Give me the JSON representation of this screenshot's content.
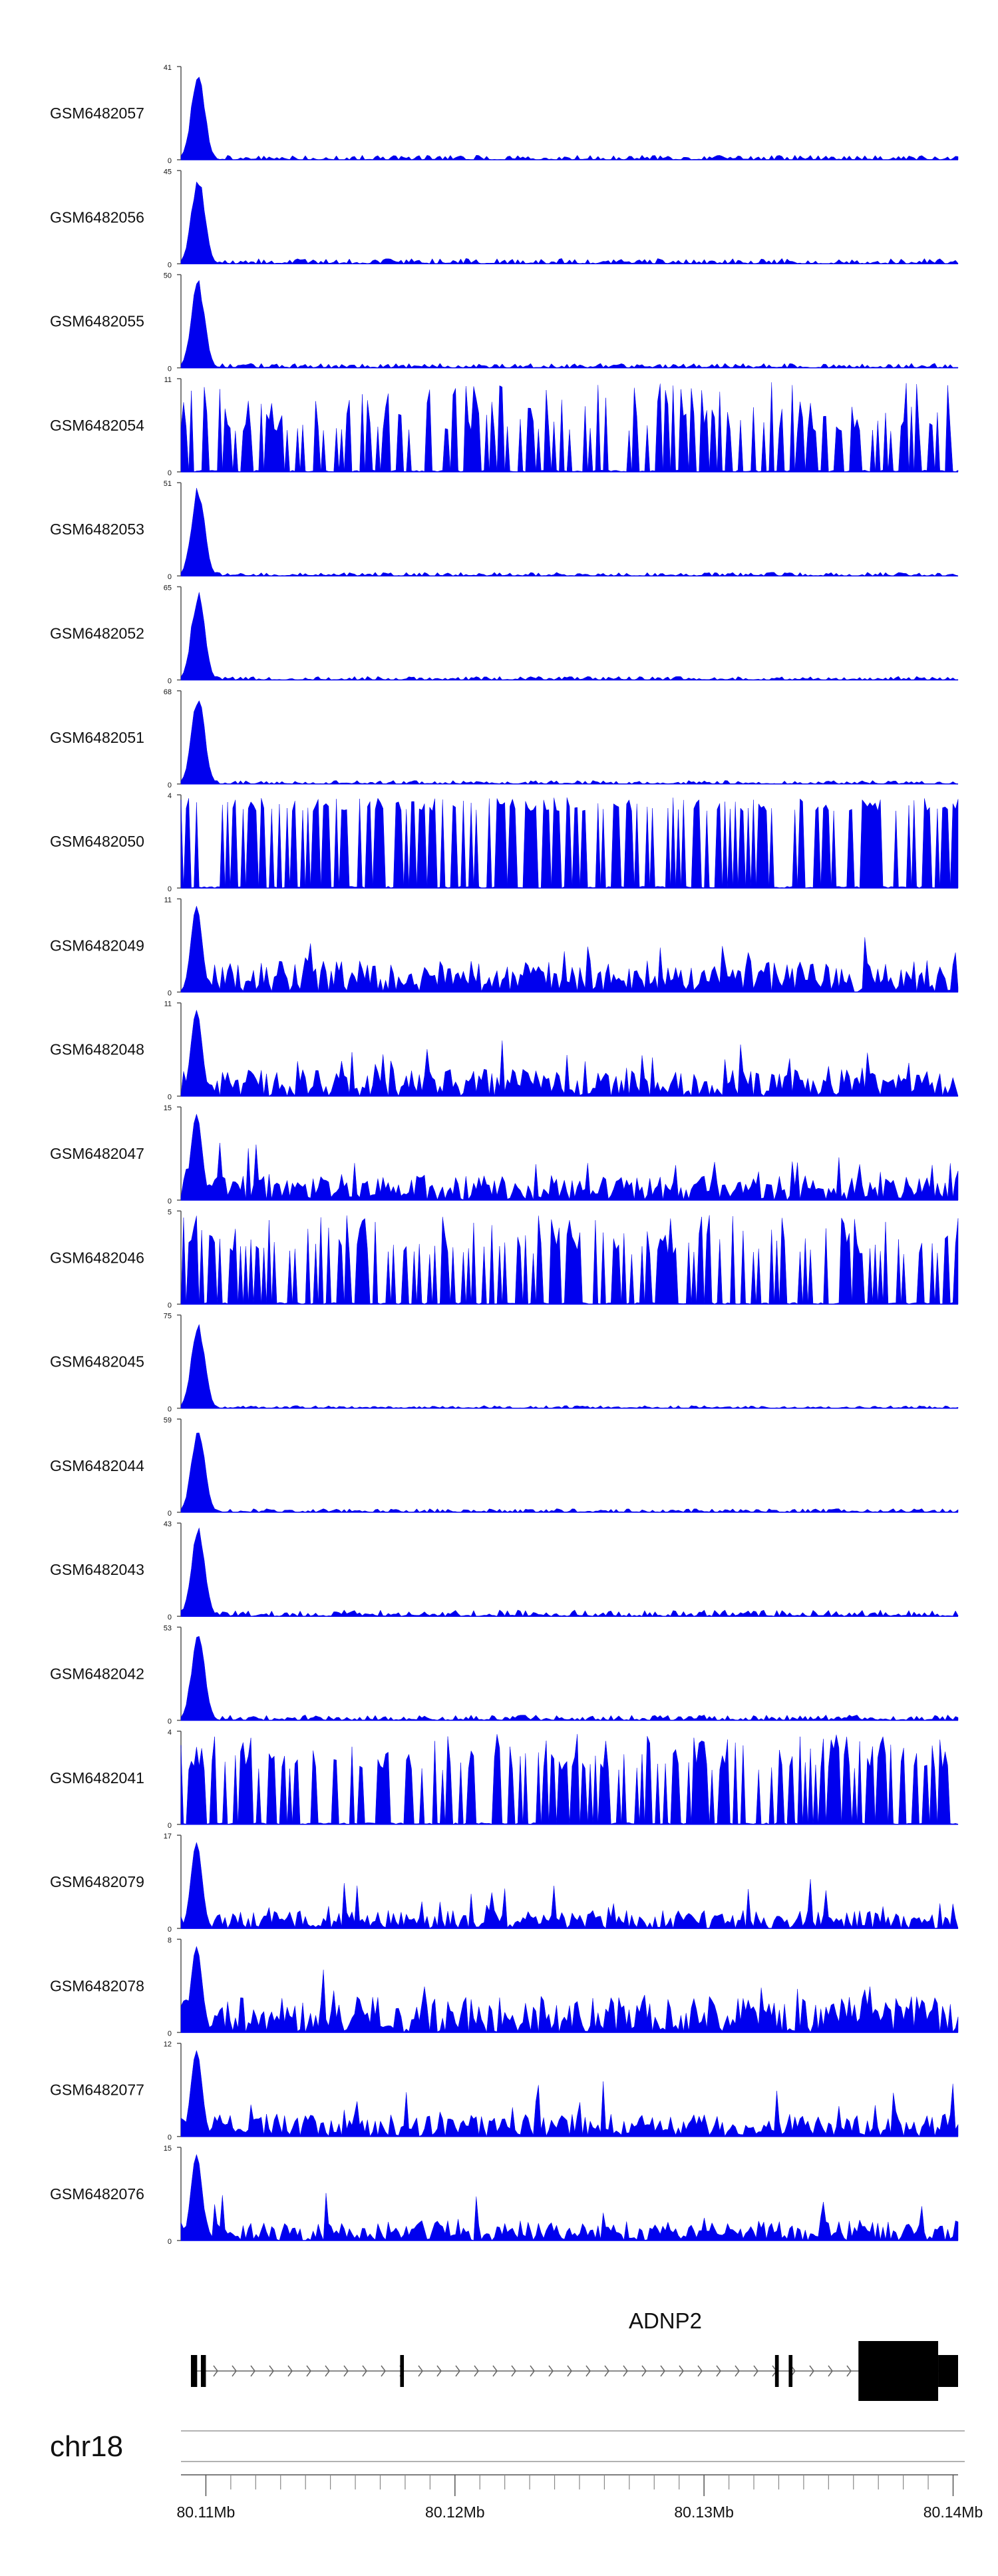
{
  "chart_data": {
    "type": "area",
    "title": "",
    "xlabel": "",
    "ylabel": "",
    "xlim": [
      80.109,
      80.1402
    ],
    "genome": {
      "chromosome": "chr18",
      "axis_ticks": [
        "80.11Mb",
        "80.12Mb",
        "80.13Mb",
        "80.14Mb"
      ],
      "axis_tick_values": [
        80.11,
        80.12,
        80.13,
        80.14
      ],
      "minor_tick_values": [
        80.111,
        80.112,
        80.113,
        80.114,
        80.115,
        80.116,
        80.117,
        80.118,
        80.119,
        80.121,
        80.122,
        80.123,
        80.124,
        80.125,
        80.126,
        80.127,
        80.128,
        80.129,
        80.131,
        80.132,
        80.133,
        80.134,
        80.135,
        80.136,
        80.137,
        80.138,
        80.139
      ],
      "gene": {
        "name": "ADNP2",
        "strand": "+",
        "start": 80.1094,
        "end": 80.1402,
        "exons": [
          {
            "start": 80.1094,
            "end": 80.10965,
            "height": "half"
          },
          {
            "start": 80.1098,
            "end": 80.11,
            "height": "half"
          },
          {
            "start": 80.1178,
            "end": 80.11795,
            "height": "half"
          },
          {
            "start": 80.13285,
            "end": 80.133,
            "height": "half"
          },
          {
            "start": 80.1334,
            "end": 80.13355,
            "height": "half"
          },
          {
            "start": 80.1362,
            "end": 80.1394,
            "height": "full"
          },
          {
            "start": 80.1394,
            "end": 80.1402,
            "height": "half"
          }
        ]
      }
    },
    "series": [
      {
        "name": "GSM6482057",
        "ymax": 41,
        "kind": "peaked",
        "noise": 0.05,
        "seed": 1
      },
      {
        "name": "GSM6482056",
        "ymax": 45,
        "kind": "peaked",
        "noise": 0.06,
        "seed": 2
      },
      {
        "name": "GSM6482055",
        "ymax": 50,
        "kind": "peaked",
        "noise": 0.05,
        "seed": 3
      },
      {
        "name": "GSM6482054",
        "ymax": 11,
        "kind": "sparse",
        "noise": 0.45,
        "seed": 4
      },
      {
        "name": "GSM6482053",
        "ymax": 51,
        "kind": "peaked",
        "noise": 0.04,
        "seed": 5
      },
      {
        "name": "GSM6482052",
        "ymax": 65,
        "kind": "peaked",
        "noise": 0.04,
        "seed": 6
      },
      {
        "name": "GSM6482051",
        "ymax": 68,
        "kind": "peaked",
        "noise": 0.04,
        "seed": 7
      },
      {
        "name": "GSM6482050",
        "ymax": 4,
        "kind": "sparse",
        "noise": 0.85,
        "seed": 8
      },
      {
        "name": "GSM6482049",
        "ymax": 11,
        "kind": "noisy",
        "noise": 0.35,
        "seed": 9
      },
      {
        "name": "GSM6482048",
        "ymax": 11,
        "kind": "noisy",
        "noise": 0.3,
        "seed": 10
      },
      {
        "name": "GSM6482047",
        "ymax": 15,
        "kind": "noisy",
        "noise": 0.28,
        "seed": 11
      },
      {
        "name": "GSM6482046",
        "ymax": 5,
        "kind": "sparse",
        "noise": 0.55,
        "seed": 12
      },
      {
        "name": "GSM6482045",
        "ymax": 75,
        "kind": "peaked",
        "noise": 0.03,
        "seed": 13
      },
      {
        "name": "GSM6482044",
        "ymax": 59,
        "kind": "peaked",
        "noise": 0.04,
        "seed": 14
      },
      {
        "name": "GSM6482043",
        "ymax": 43,
        "kind": "peaked",
        "noise": 0.07,
        "seed": 15
      },
      {
        "name": "GSM6482042",
        "ymax": 53,
        "kind": "peaked",
        "noise": 0.06,
        "seed": 16
      },
      {
        "name": "GSM6482041",
        "ymax": 4,
        "kind": "sparse",
        "noise": 0.6,
        "seed": 17
      },
      {
        "name": "GSM6482079",
        "ymax": 17,
        "kind": "noisy",
        "noise": 0.2,
        "seed": 18
      },
      {
        "name": "GSM6482078",
        "ymax": 8,
        "kind": "noisy",
        "noise": 0.4,
        "seed": 19
      },
      {
        "name": "GSM6482077",
        "ymax": 12,
        "kind": "noisy",
        "noise": 0.25,
        "seed": 20
      },
      {
        "name": "GSM6482076",
        "ymax": 15,
        "kind": "noisy",
        "noise": 0.22,
        "seed": 21
      }
    ],
    "colors": {
      "fill": "#0000ee",
      "axis": "#555555",
      "text": "#111111"
    }
  }
}
